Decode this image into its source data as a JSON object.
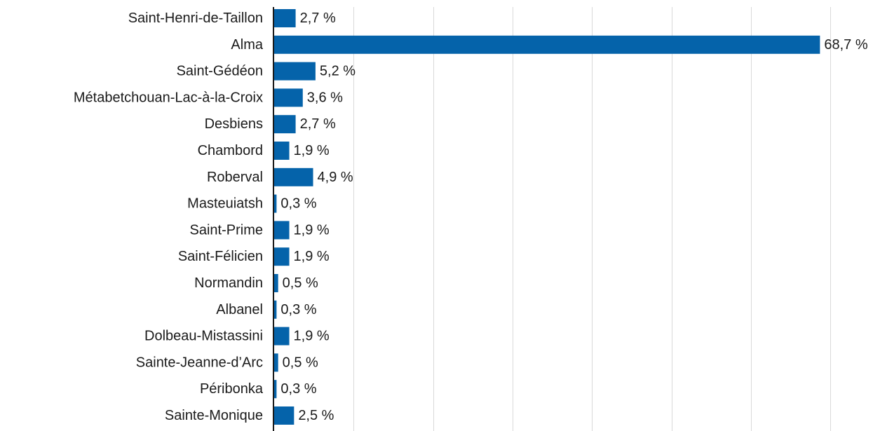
{
  "chart_data": {
    "type": "bar",
    "orientation": "horizontal",
    "title": "",
    "xlabel": "",
    "ylabel": "",
    "categories": [
      "Saint-Henri-de-Taillon",
      "Alma",
      "Saint-Gédéon",
      "Métabetchouan-Lac-à-la-Croix",
      "Desbiens",
      "Chambord",
      "Roberval",
      "Masteuiatsh",
      "Saint-Prime",
      "Saint-Félicien",
      "Normandin",
      "Albanel",
      "Dolbeau-Mistassini",
      "Sainte-Jeanne-d’Arc",
      "Péribonka",
      "Sainte-Monique"
    ],
    "values": [
      2.7,
      68.7,
      5.2,
      3.6,
      2.7,
      1.9,
      4.9,
      0.3,
      1.9,
      1.9,
      0.5,
      0.3,
      1.9,
      0.5,
      0.3,
      2.5
    ],
    "value_labels": [
      "2,7 %",
      "68,7 %",
      "5,2 %",
      "3,6 %",
      "2,7 %",
      "1,9 %",
      "4,9 %",
      "0,3 %",
      "1,9 %",
      "1,9 %",
      "0,5 %",
      "0,3 %",
      "1,9 %",
      "0,5 %",
      "0,3 %",
      "2,5 %"
    ],
    "xlim": [
      0,
      70
    ],
    "x_gridlines": [
      10,
      20,
      30,
      40,
      50,
      60,
      70
    ],
    "grid": true,
    "legend": "none",
    "bar_color": "#0563aa",
    "grid_color": "#d9d9d9",
    "axis_color": "#1a1a1a"
  }
}
